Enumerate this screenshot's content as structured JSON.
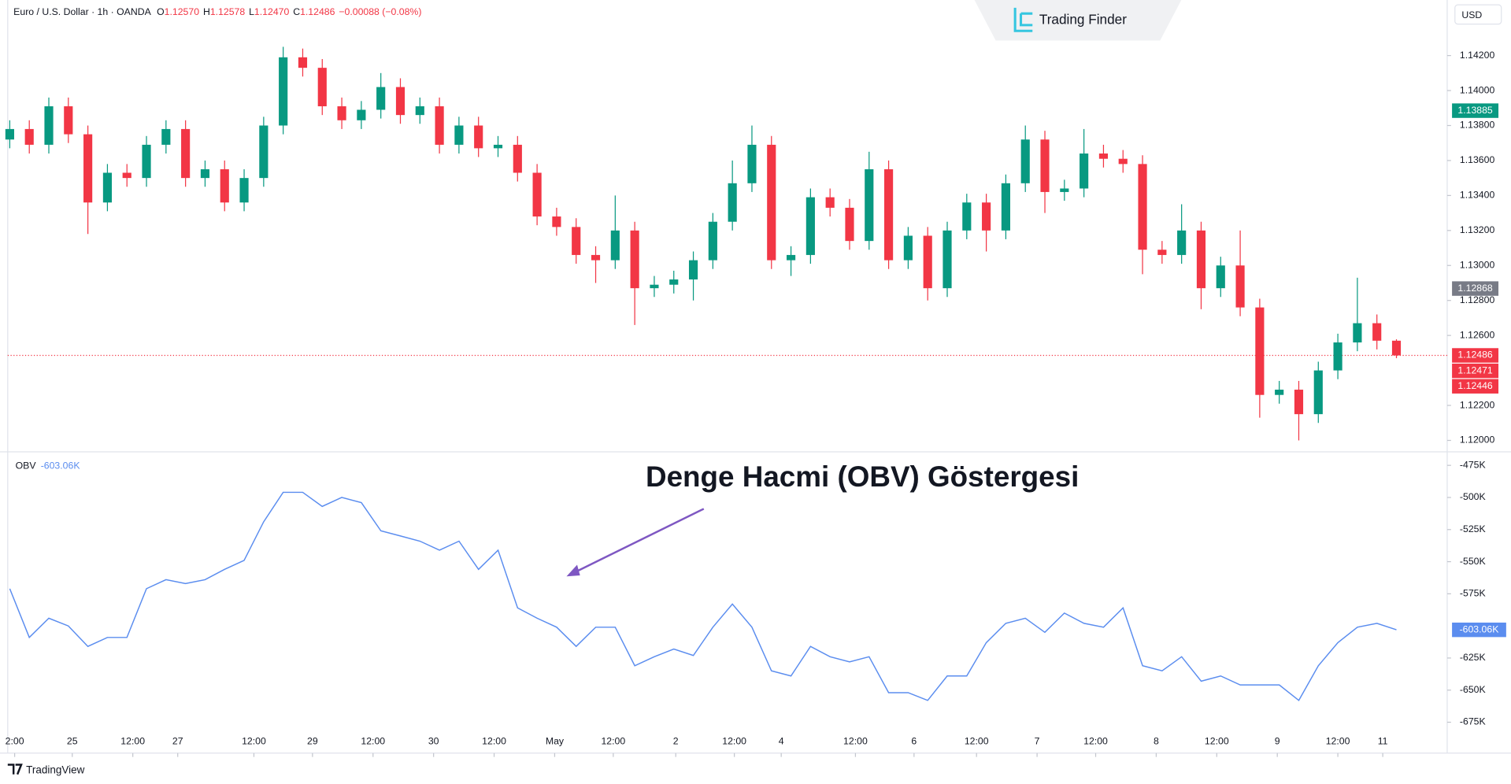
{
  "header": {
    "title": "Euro / U.S. Dollar · 1h · OANDA",
    "ohlc": [
      {
        "label": "O",
        "value": "1.12570"
      },
      {
        "label": "H",
        "value": "1.12578"
      },
      {
        "label": "L",
        "value": "1.12470"
      },
      {
        "label": "C",
        "value": "1.12486"
      }
    ],
    "change": "−0.00088 (−0.08%)",
    "currency": "USD",
    "watermark": "Trading Finder",
    "footer": "TradingView"
  },
  "chart_data": [
    {
      "type": "candlestick",
      "up_color": "#089981",
      "down_color": "#f23645",
      "xlim": [
        -0.5,
        73.5
      ],
      "ylim": [
        1.1194,
        1.1449
      ],
      "yticks": [
        {
          "value": 1.12,
          "label": "1.12000"
        },
        {
          "value": 1.122,
          "label": "1.12200"
        },
        {
          "value": 1.126,
          "label": "1.12600"
        },
        {
          "value": 1.128,
          "label": "1.12800"
        },
        {
          "value": 1.13,
          "label": "1.13000"
        },
        {
          "value": 1.132,
          "label": "1.13200"
        },
        {
          "value": 1.134,
          "label": "1.13400"
        },
        {
          "value": 1.136,
          "label": "1.13600"
        },
        {
          "value": 1.138,
          "label": "1.13800"
        },
        {
          "value": 1.14,
          "label": "1.14000"
        },
        {
          "value": 1.142,
          "label": "1.14200"
        }
      ],
      "price_tags": [
        {
          "value": 1.13885,
          "label": "1.13885",
          "color": "#089981"
        },
        {
          "value": 1.12868,
          "label": "1.12868",
          "color": "#787b86"
        },
        {
          "value": 1.12486,
          "label": "1.12486",
          "color": "#f23645"
        },
        {
          "value": 1.12471,
          "label": "1.12471",
          "color": "#f23645"
        },
        {
          "value": 1.12446,
          "label": "1.12446",
          "color": "#f23645"
        }
      ],
      "open": [
        1.1372,
        1.1378,
        1.1369,
        1.1391,
        1.1375,
        1.1336,
        1.1353,
        1.135,
        1.1369,
        1.1378,
        1.135,
        1.1355,
        1.1336,
        1.135,
        1.138,
        1.1419,
        1.1413,
        1.1391,
        1.1383,
        1.1389,
        1.1402,
        1.1386,
        1.1391,
        1.1369,
        1.138,
        1.1367,
        1.1369,
        1.1353,
        1.1328,
        1.1322,
        1.1306,
        1.1303,
        1.132,
        1.1287,
        1.1289,
        1.1292,
        1.1303,
        1.1325,
        1.1347,
        1.1369,
        1.1303,
        1.1306,
        1.1339,
        1.1333,
        1.1314,
        1.1355,
        1.1303,
        1.1317,
        1.1287,
        1.132,
        1.1336,
        1.132,
        1.1347,
        1.1372,
        1.1342,
        1.1344,
        1.1364,
        1.1361,
        1.1358,
        1.1309,
        1.1306,
        1.132,
        1.1287,
        1.13,
        1.1276,
        1.1226,
        1.1229,
        1.1215,
        1.124,
        1.1256,
        1.1267,
        1.1257
      ],
      "high": [
        1.1383,
        1.1383,
        1.1396,
        1.1396,
        1.138,
        1.1358,
        1.1358,
        1.1374,
        1.1383,
        1.1383,
        1.136,
        1.136,
        1.1355,
        1.1385,
        1.1425,
        1.1424,
        1.1418,
        1.1396,
        1.1394,
        1.141,
        1.1407,
        1.1396,
        1.1396,
        1.1385,
        1.1385,
        1.1374,
        1.1374,
        1.1358,
        1.1333,
        1.1327,
        1.1311,
        1.134,
        1.1325,
        1.1294,
        1.1297,
        1.1308,
        1.133,
        1.136,
        1.138,
        1.1374,
        1.1311,
        1.1344,
        1.1344,
        1.1338,
        1.1365,
        1.136,
        1.1322,
        1.1322,
        1.1325,
        1.1341,
        1.1341,
        1.1352,
        1.138,
        1.1377,
        1.1349,
        1.1378,
        1.1369,
        1.1366,
        1.1363,
        1.1314,
        1.1335,
        1.1325,
        1.1305,
        1.132,
        1.1281,
        1.1234,
        1.1234,
        1.1245,
        1.1261,
        1.1293,
        1.1272,
        1.12578
      ],
      "low": [
        1.1367,
        1.1364,
        1.1364,
        1.137,
        1.1318,
        1.1331,
        1.1345,
        1.1345,
        1.1364,
        1.1345,
        1.1345,
        1.1331,
        1.1331,
        1.1345,
        1.1375,
        1.1408,
        1.1386,
        1.1378,
        1.1378,
        1.1384,
        1.1381,
        1.1381,
        1.1364,
        1.1364,
        1.1362,
        1.1362,
        1.1348,
        1.1323,
        1.1317,
        1.1301,
        1.129,
        1.1298,
        1.1266,
        1.1282,
        1.1284,
        1.128,
        1.1298,
        1.132,
        1.1342,
        1.1298,
        1.1294,
        1.1301,
        1.1328,
        1.1309,
        1.1309,
        1.1298,
        1.1298,
        1.128,
        1.1282,
        1.1315,
        1.1308,
        1.1315,
        1.1342,
        1.133,
        1.1337,
        1.1339,
        1.1356,
        1.1353,
        1.1295,
        1.1301,
        1.1301,
        1.1275,
        1.1282,
        1.1271,
        1.1213,
        1.1221,
        1.12,
        1.121,
        1.1235,
        1.1251,
        1.1252,
        1.1247
      ],
      "close": [
        1.1378,
        1.1369,
        1.1391,
        1.1375,
        1.1336,
        1.1353,
        1.135,
        1.1369,
        1.1378,
        1.135,
        1.1355,
        1.1336,
        1.135,
        1.138,
        1.1419,
        1.1413,
        1.1391,
        1.1383,
        1.1389,
        1.1402,
        1.1386,
        1.1391,
        1.1369,
        1.138,
        1.1367,
        1.1369,
        1.1353,
        1.1328,
        1.1322,
        1.1306,
        1.1303,
        1.132,
        1.1287,
        1.1289,
        1.1292,
        1.1303,
        1.1325,
        1.1347,
        1.1369,
        1.1303,
        1.1306,
        1.1339,
        1.1333,
        1.1314,
        1.1355,
        1.1303,
        1.1317,
        1.1287,
        1.132,
        1.1336,
        1.132,
        1.1347,
        1.1372,
        1.1342,
        1.1344,
        1.1364,
        1.1361,
        1.1358,
        1.1309,
        1.1306,
        1.132,
        1.1287,
        1.13,
        1.1276,
        1.1226,
        1.1229,
        1.1215,
        1.124,
        1.1256,
        1.1267,
        1.1257,
        1.12486
      ]
    },
    {
      "type": "line",
      "annotation": "Denge Hacmi (OBV) Göstergesi",
      "xlim": [
        -0.5,
        73.5
      ],
      "ylim": [
        -684000,
        -466000
      ],
      "xticks": [
        {
          "value": 0.25,
          "label": "2:00"
        },
        {
          "value": 3.2,
          "label": "25"
        },
        {
          "value": 6.3,
          "label": "12:00"
        },
        {
          "value": 8.6,
          "label": "27"
        },
        {
          "value": 12.5,
          "label": "12:00"
        },
        {
          "value": 15.5,
          "label": "29"
        },
        {
          "value": 18.6,
          "label": "12:00"
        },
        {
          "value": 21.7,
          "label": "30"
        },
        {
          "value": 24.8,
          "label": "12:00"
        },
        {
          "value": 27.9,
          "label": "May"
        },
        {
          "value": 30.9,
          "label": "12:00"
        },
        {
          "value": 34.1,
          "label": "2"
        },
        {
          "value": 37.1,
          "label": "12:00"
        },
        {
          "value": 39.5,
          "label": "4"
        },
        {
          "value": 43.3,
          "label": "12:00"
        },
        {
          "value": 46.3,
          "label": "6"
        },
        {
          "value": 49.5,
          "label": "12:00"
        },
        {
          "value": 52.6,
          "label": "7"
        },
        {
          "value": 55.6,
          "label": "12:00"
        },
        {
          "value": 58.7,
          "label": "8"
        },
        {
          "value": 61.8,
          "label": "12:00"
        },
        {
          "value": 64.9,
          "label": "9"
        },
        {
          "value": 68,
          "label": "12:00"
        },
        {
          "value": 70.3,
          "label": "11"
        }
      ],
      "yticks": [
        {
          "value": -475000,
          "label": "-475K"
        },
        {
          "value": -500000,
          "label": "-500K"
        },
        {
          "value": -525000,
          "label": "-525K"
        },
        {
          "value": -550000,
          "label": "-550K"
        },
        {
          "value": -575000,
          "label": "-575K"
        },
        {
          "value": -625000,
          "label": "-625K"
        },
        {
          "value": -650000,
          "label": "-650K"
        },
        {
          "value": -675000,
          "label": "-675K"
        }
      ],
      "last_value": {
        "value": -603060,
        "label": "-603.06K"
      },
      "series": [
        {
          "name": "OBV",
          "color": "#5b8def",
          "values": [
            -571000,
            -609000,
            -594000,
            -600000,
            -616000,
            -609000,
            -609000,
            -571000,
            -564000,
            -567000,
            -564000,
            -556000,
            -549000,
            -519000,
            -496000,
            -496000,
            -507000,
            -500000,
            -504000,
            -526000,
            -530000,
            -534000,
            -541000,
            -534000,
            -556000,
            -541000,
            -586000,
            -594000,
            -601000,
            -616000,
            -601000,
            -601000,
            -631000,
            -624000,
            -618000,
            -623000,
            -601000,
            -583000,
            -601000,
            -635000,
            -639000,
            -616000,
            -624000,
            -628000,
            -624000,
            -652000,
            -652000,
            -658000,
            -639000,
            -639000,
            -613000,
            -598000,
            -594000,
            -605000,
            -590000,
            -598000,
            -601000,
            -586000,
            -631000,
            -635000,
            -624000,
            -643000,
            -639000,
            -646000,
            -646000,
            -646000,
            -658000,
            -631000,
            -613000,
            -601000,
            -598000,
            -603060
          ]
        }
      ]
    }
  ]
}
